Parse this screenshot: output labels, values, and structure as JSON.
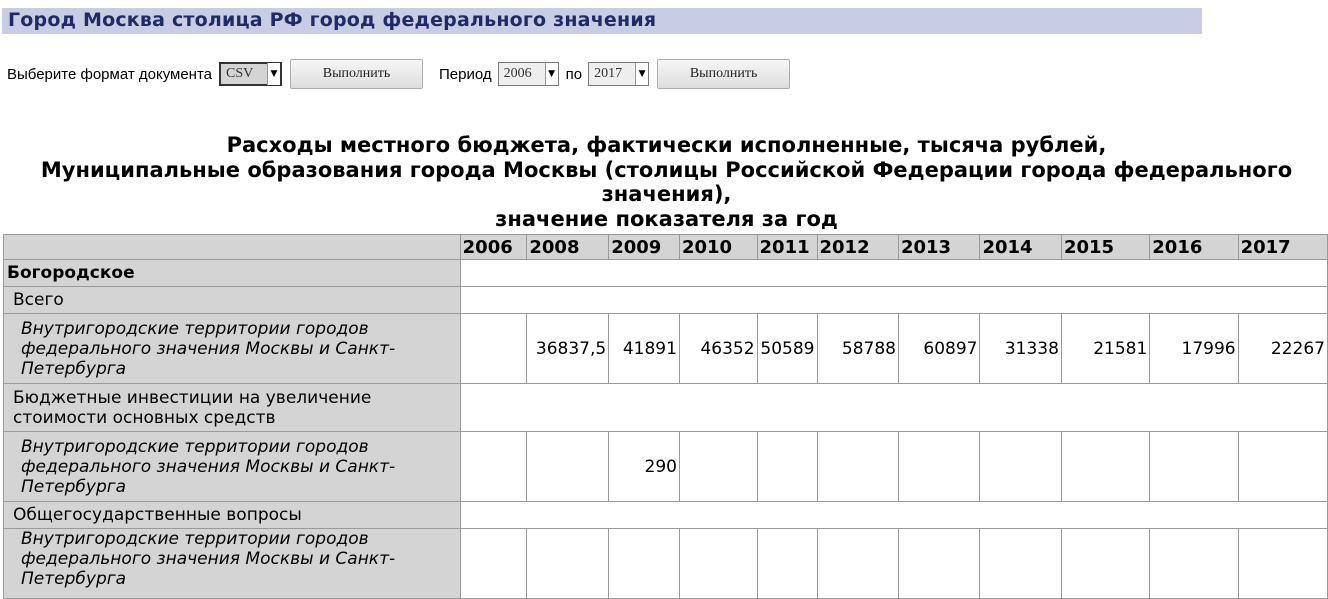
{
  "header": {
    "title": "Город Москва столица РФ город федерального значения"
  },
  "controls": {
    "format_label": "Выберите формат документа",
    "format_value": "CSV",
    "execute1_label": "Выполнить",
    "period_label": "Период",
    "period_from": "2006",
    "period_to_label": "по",
    "period_to": "2017",
    "execute2_label": "Выполнить"
  },
  "report": {
    "title_lines": [
      "Расходы местного бюджета, фактически исполненные, тысяча рублей,",
      "Муниципальные образования города Москвы (столицы Российской Федерации города федерального",
      "значения),",
      "значение показателя за год"
    ]
  },
  "table": {
    "years": [
      "2006",
      "2008",
      "2009",
      "2010",
      "2011",
      "2012",
      "2013",
      "2014",
      "2015",
      "2016",
      "2017"
    ],
    "rows": [
      {
        "label": "Богородское",
        "level": 0,
        "span": true
      },
      {
        "label": "Всего",
        "level": 1,
        "span": true
      },
      {
        "label": "Внутригородские территории городов федерального значения Москвы и Санкт-Петербурга",
        "level": 2,
        "span": false,
        "values": [
          "",
          "36837,5",
          "41891",
          "46352",
          "50589",
          "58788",
          "60897",
          "31338",
          "21581",
          "17996",
          "22267"
        ]
      },
      {
        "label": "Бюджетные инвестиции на увеличение стоимости основных средств",
        "level": 1,
        "span": true
      },
      {
        "label": "Внутригородские территории городов федерального значения Москвы и Санкт-Петербурга",
        "level": 2,
        "span": false,
        "values": [
          "",
          "",
          "290",
          "",
          "",
          "",
          "",
          "",
          "",
          "",
          ""
        ]
      },
      {
        "label": "Общегосударственные вопросы",
        "level": 1,
        "span": true
      },
      {
        "label": "Внутригородские территории городов федерального значения Москвы и Санкт-Петербурга",
        "level": 2,
        "span": false,
        "values": [
          "",
          "",
          "",
          "",
          "",
          "",
          "",
          "",
          "",
          "",
          ""
        ]
      }
    ]
  }
}
